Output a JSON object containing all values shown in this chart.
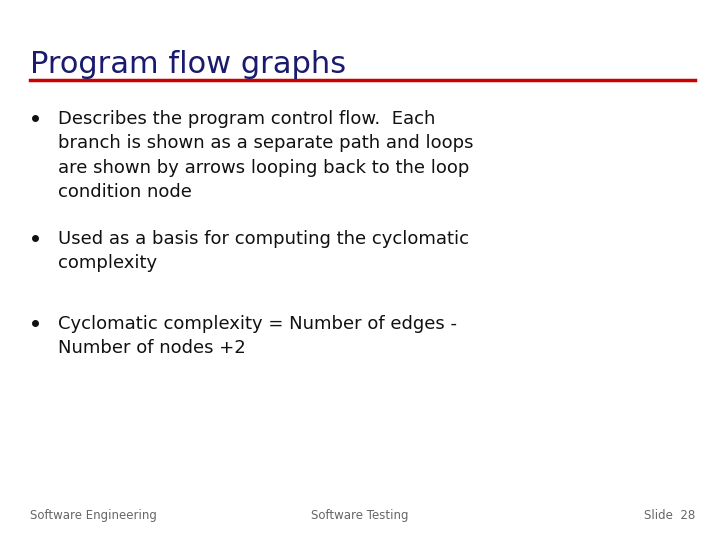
{
  "title": "Program flow graphs",
  "title_color": "#1a1a6e",
  "title_fontsize": 22,
  "line_color": "#cc0000",
  "bg_color": "#ffffff",
  "bullet_points": [
    "Describes the program control flow.  Each\nbranch is shown as a separate path and loops\nare shown by arrows looping back to the loop\ncondition node",
    "Used as a basis for computing the cyclomatic\ncomplexity",
    "Cyclomatic complexity = Number of edges -\nNumber of nodes +2"
  ],
  "bullet_color": "#111111",
  "bullet_fontsize": 13,
  "footer_left": "Software Engineering",
  "footer_center": "Software Testing",
  "footer_right": "Slide  28",
  "footer_fontsize": 8.5,
  "footer_color": "#666666"
}
